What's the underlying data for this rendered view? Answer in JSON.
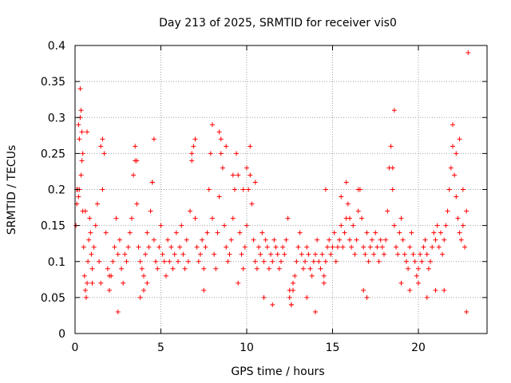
{
  "chart_data": {
    "type": "scatter",
    "title": "Day 213 of 2025, SRMTID for receiver vis0",
    "xlabel": "GPS time / hours",
    "ylabel": "SRMTID / TECUs",
    "xlim": [
      0,
      24
    ],
    "ylim": [
      0,
      0.4
    ],
    "x_ticks": [
      0,
      5,
      10,
      15,
      20
    ],
    "x_tick_labels": [
      "0",
      "5",
      "10",
      "15",
      "20"
    ],
    "y_ticks": [
      0,
      0.05,
      0.1,
      0.15,
      0.2,
      0.25,
      0.3,
      0.35,
      0.4
    ],
    "y_tick_labels": [
      "0",
      "0.05",
      "0.1",
      "0.15",
      "0.2",
      "0.25",
      "0.3",
      "0.35",
      "0.4"
    ],
    "grid": true,
    "marker": "+",
    "color": "#ff0000",
    "series": [
      {
        "name": "vis0",
        "x": [
          0.05,
          0.1,
          0.15,
          0.2,
          0.25,
          0.3,
          0.35,
          0.4,
          0.45,
          0.5,
          0.55,
          0.6,
          0.65,
          0.7,
          0.75,
          0.8,
          0.85,
          0.9,
          0.95,
          1.0,
          1.1,
          1.2,
          1.3,
          1.4,
          1.5,
          1.6,
          1.7,
          1.8,
          1.9,
          2.0,
          2.1,
          2.2,
          2.3,
          2.4,
          2.5,
          2.6,
          2.7,
          2.8,
          2.9,
          3.0,
          3.1,
          3.2,
          3.3,
          3.4,
          3.5,
          3.6,
          3.7,
          3.8,
          3.9,
          4.0,
          4.1,
          4.2,
          4.3,
          4.4,
          4.5,
          4.6,
          4.7,
          4.8,
          4.9,
          5.0,
          5.1,
          5.2,
          5.3,
          5.4,
          5.5,
          5.6,
          5.7,
          5.8,
          5.9,
          6.0,
          6.1,
          6.2,
          6.3,
          6.4,
          6.5,
          6.6,
          6.7,
          6.8,
          6.9,
          7.0,
          7.1,
          7.2,
          7.3,
          7.4,
          7.5,
          7.6,
          7.7,
          7.8,
          7.9,
          8.0,
          8.1,
          8.2,
          8.3,
          8.4,
          8.5,
          8.6,
          8.7,
          8.8,
          8.9,
          9.0,
          9.1,
          9.2,
          9.3,
          9.4,
          9.5,
          9.6,
          9.7,
          9.8,
          9.9,
          10.0,
          10.1,
          10.2,
          10.3,
          10.4,
          10.5,
          10.6,
          10.7,
          10.8,
          10.9,
          11.0,
          11.1,
          11.2,
          11.3,
          11.4,
          11.5,
          11.6,
          11.7,
          11.8,
          11.9,
          12.0,
          12.1,
          12.2,
          12.3,
          12.4,
          12.5,
          12.6,
          12.7,
          12.8,
          12.9,
          13.0,
          13.1,
          13.2,
          13.3,
          13.4,
          13.5,
          13.6,
          13.7,
          13.8,
          13.9,
          14.0,
          14.1,
          14.2,
          14.3,
          14.4,
          14.5,
          14.6,
          14.7,
          14.8,
          14.9,
          15.0,
          15.1,
          15.2,
          15.3,
          15.4,
          15.5,
          15.6,
          15.7,
          15.8,
          15.9,
          16.0,
          16.1,
          16.2,
          16.3,
          16.4,
          16.5,
          16.6,
          16.7,
          16.8,
          16.9,
          17.0,
          17.1,
          17.2,
          17.3,
          17.4,
          17.5,
          17.6,
          17.7,
          17.8,
          17.9,
          18.0,
          18.1,
          18.2,
          18.3,
          18.4,
          18.5,
          18.6,
          18.7,
          18.8,
          18.9,
          19.0,
          19.1,
          19.2,
          19.3,
          19.4,
          19.5,
          19.6,
          19.7,
          19.8,
          19.9,
          20.0,
          20.1,
          20.2,
          20.3,
          20.4,
          20.5,
          20.6,
          20.7,
          20.8,
          20.9,
          21.0,
          21.1,
          21.2,
          21.3,
          21.4,
          21.5,
          21.6,
          21.7,
          21.8,
          21.9,
          22.0,
          22.1,
          22.2,
          22.3,
          22.4,
          22.5,
          22.6,
          22.7,
          22.8,
          22.9,
          0.3,
          0.35,
          0.4,
          0.45,
          0.2,
          0.25,
          0.6,
          0.7,
          1.5,
          1.6,
          3.5,
          3.6,
          4.5,
          4.6,
          6.8,
          7.0,
          8.0,
          8.4,
          8.5,
          8.8,
          9.2,
          9.8,
          10.0,
          10.2,
          18.5,
          18.6,
          22.0,
          22.2,
          22.4,
          22.6,
          22.8,
          12.5,
          12.6,
          12.7,
          13.5,
          14.0,
          14.5,
          14.6,
          7.5,
          2.0,
          2.5,
          3.8,
          4.0,
          4.2,
          11.0,
          11.5,
          16.5,
          16.8,
          17.0,
          19.0,
          19.5,
          20.0,
          20.5,
          21.0,
          21.5,
          0.1,
          1.0,
          9.5,
          10.5,
          15.5,
          15.8,
          16.0
        ],
        "y": [
          0.15,
          0.18,
          0.2,
          0.19,
          0.27,
          0.3,
          0.22,
          0.24,
          0.17,
          0.12,
          0.08,
          0.06,
          0.05,
          0.07,
          0.1,
          0.13,
          0.16,
          0.14,
          0.11,
          0.09,
          0.12,
          0.15,
          0.18,
          0.1,
          0.07,
          0.2,
          0.25,
          0.14,
          0.09,
          0.06,
          0.08,
          0.1,
          0.12,
          0.16,
          0.11,
          0.13,
          0.09,
          0.07,
          0.11,
          0.1,
          0.12,
          0.14,
          0.16,
          0.22,
          0.26,
          0.18,
          0.12,
          0.1,
          0.09,
          0.08,
          0.11,
          0.14,
          0.12,
          0.17,
          0.21,
          0.13,
          0.1,
          0.09,
          0.12,
          0.15,
          0.11,
          0.1,
          0.08,
          0.13,
          0.1,
          0.12,
          0.09,
          0.11,
          0.14,
          0.1,
          0.12,
          0.15,
          0.11,
          0.09,
          0.13,
          0.1,
          0.17,
          0.24,
          0.26,
          0.16,
          0.12,
          0.1,
          0.11,
          0.13,
          0.09,
          0.12,
          0.14,
          0.2,
          0.25,
          0.16,
          0.11,
          0.09,
          0.14,
          0.19,
          0.27,
          0.23,
          0.15,
          0.12,
          0.1,
          0.11,
          0.13,
          0.16,
          0.2,
          0.25,
          0.22,
          0.14,
          0.11,
          0.09,
          0.12,
          0.15,
          0.2,
          0.22,
          0.18,
          0.13,
          0.1,
          0.09,
          0.12,
          0.11,
          0.14,
          0.1,
          0.13,
          0.12,
          0.09,
          0.11,
          0.1,
          0.13,
          0.12,
          0.11,
          0.09,
          0.1,
          0.12,
          0.11,
          0.13,
          0.16,
          0.06,
          0.04,
          0.07,
          0.08,
          0.1,
          0.12,
          0.14,
          0.11,
          0.09,
          0.1,
          0.12,
          0.11,
          0.09,
          0.08,
          0.1,
          0.11,
          0.13,
          0.1,
          0.09,
          0.11,
          0.08,
          0.1,
          0.12,
          0.13,
          0.11,
          0.12,
          0.14,
          0.1,
          0.12,
          0.13,
          0.15,
          0.12,
          0.14,
          0.16,
          0.18,
          0.13,
          0.12,
          0.15,
          0.11,
          0.13,
          0.17,
          0.2,
          0.16,
          0.12,
          0.11,
          0.14,
          0.1,
          0.12,
          0.13,
          0.11,
          0.14,
          0.12,
          0.1,
          0.13,
          0.12,
          0.11,
          0.13,
          0.17,
          0.23,
          0.26,
          0.2,
          0.15,
          0.12,
          0.11,
          0.14,
          0.16,
          0.13,
          0.11,
          0.1,
          0.09,
          0.12,
          0.14,
          0.11,
          0.1,
          0.08,
          0.09,
          0.11,
          0.1,
          0.12,
          0.13,
          0.11,
          0.09,
          0.1,
          0.12,
          0.14,
          0.13,
          0.15,
          0.12,
          0.14,
          0.11,
          0.13,
          0.15,
          0.17,
          0.2,
          0.23,
          0.26,
          0.22,
          0.19,
          0.16,
          0.14,
          0.13,
          0.15,
          0.12,
          0.17,
          0.39,
          0.34,
          0.31,
          0.28,
          0.25,
          0.29,
          0.2,
          0.17,
          0.28,
          0.26,
          0.27,
          0.24,
          0.24,
          0.21,
          0.27,
          0.25,
          0.27,
          0.29,
          0.28,
          0.25,
          0.26,
          0.22,
          0.2,
          0.23,
          0.26,
          0.23,
          0.31,
          0.29,
          0.25,
          0.27,
          0.2,
          0.03,
          0.05,
          0.04,
          0.06,
          0.05,
          0.03,
          0.07,
          0.2,
          0.06,
          0.08,
          0.03,
          0.05,
          0.06,
          0.07,
          0.05,
          0.04,
          0.2,
          0.06,
          0.05,
          0.07,
          0.06,
          0.07,
          0.05,
          0.06,
          0.06,
          0.2,
          0.07,
          0.07,
          0.21,
          0.19,
          0.21,
          0.16
        ]
      }
    ]
  }
}
